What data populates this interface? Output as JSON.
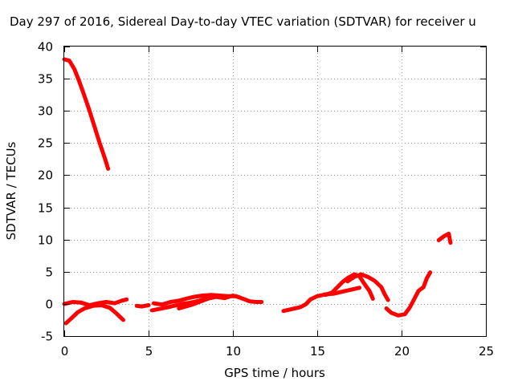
{
  "chart_data": {
    "type": "scatter",
    "title": "Day 297 of 2016, Sidereal Day-to-day VTEC variation (SDTVAR) for receiver u",
    "xlabel": "GPS time / hours",
    "ylabel": "SDTVAR / TECUs",
    "xlim": [
      0,
      25
    ],
    "ylim": [
      -5,
      40
    ],
    "xticks": [
      0,
      5,
      10,
      15,
      20,
      25
    ],
    "yticks": [
      -5,
      0,
      5,
      10,
      15,
      20,
      25,
      30,
      35,
      40
    ],
    "grid": true,
    "color": "#ff0000",
    "marker": "plus",
    "series": [
      {
        "points": [
          [
            0.0,
            38.0
          ],
          [
            0.3,
            37.8
          ],
          [
            0.6,
            36.5
          ],
          [
            0.9,
            34.5
          ],
          [
            1.2,
            32.3
          ],
          [
            1.5,
            30.0
          ],
          [
            1.8,
            27.5
          ],
          [
            2.1,
            25.0
          ],
          [
            2.4,
            22.7
          ],
          [
            2.6,
            21.0
          ]
        ]
      },
      {
        "points": [
          [
            0.1,
            -3.0
          ],
          [
            0.4,
            -2.3
          ],
          [
            0.8,
            -1.3
          ],
          [
            1.2,
            -0.7
          ],
          [
            1.7,
            -0.3
          ],
          [
            2.2,
            -0.2
          ],
          [
            2.7,
            -0.6
          ],
          [
            3.1,
            -1.5
          ],
          [
            3.5,
            -2.5
          ]
        ]
      },
      {
        "points": [
          [
            0.0,
            0.0
          ],
          [
            0.5,
            0.3
          ],
          [
            1.0,
            0.2
          ],
          [
            1.5,
            -0.2
          ],
          [
            2.0,
            0.1
          ],
          [
            2.5,
            0.3
          ],
          [
            3.0,
            0.1
          ],
          [
            3.4,
            0.5
          ],
          [
            3.7,
            0.7
          ]
        ]
      },
      {
        "points": [
          [
            4.3,
            -0.3
          ],
          [
            4.6,
            -0.4
          ],
          [
            5.0,
            -0.2
          ]
        ]
      },
      {
        "points": [
          [
            5.2,
            -1.0
          ],
          [
            5.6,
            -0.8
          ],
          [
            6.0,
            -0.6
          ],
          [
            6.5,
            -0.3
          ],
          [
            7.0,
            0.0
          ],
          [
            7.5,
            0.2
          ],
          [
            8.0,
            0.5
          ],
          [
            8.5,
            0.9
          ]
        ]
      },
      {
        "points": [
          [
            5.3,
            0.1
          ],
          [
            5.8,
            -0.1
          ],
          [
            6.3,
            0.3
          ],
          [
            6.8,
            0.5
          ],
          [
            7.2,
            0.8
          ],
          [
            7.7,
            1.1
          ],
          [
            8.2,
            1.3
          ],
          [
            8.7,
            1.4
          ],
          [
            9.2,
            1.3
          ],
          [
            9.7,
            1.2
          ],
          [
            10.2,
            1.2
          ],
          [
            10.6,
            0.8
          ],
          [
            11.0,
            0.4
          ],
          [
            11.4,
            0.3
          ],
          [
            11.7,
            0.3
          ]
        ]
      },
      {
        "points": [
          [
            6.8,
            -0.7
          ],
          [
            7.2,
            -0.4
          ],
          [
            7.6,
            -0.1
          ],
          [
            8.0,
            0.3
          ],
          [
            8.5,
            0.8
          ],
          [
            9.0,
            1.1
          ],
          [
            9.5,
            0.9
          ],
          [
            10.0,
            1.3
          ],
          [
            10.4,
            1.0
          ]
        ]
      },
      {
        "points": [
          [
            13.0,
            -1.1
          ],
          [
            13.5,
            -0.8
          ],
          [
            14.0,
            -0.5
          ],
          [
            14.3,
            -0.1
          ],
          [
            14.6,
            0.7
          ],
          [
            15.0,
            1.2
          ],
          [
            15.5,
            1.5
          ],
          [
            16.0,
            1.6
          ],
          [
            16.5,
            1.9
          ],
          [
            17.0,
            2.2
          ],
          [
            17.5,
            2.5
          ]
        ]
      },
      {
        "points": [
          [
            15.5,
            1.4
          ],
          [
            15.9,
            1.8
          ],
          [
            16.2,
            2.6
          ],
          [
            16.5,
            3.4
          ],
          [
            16.8,
            4.0
          ],
          [
            17.2,
            4.6
          ],
          [
            17.5,
            4.3
          ],
          [
            17.8,
            3.1
          ],
          [
            18.1,
            2.0
          ],
          [
            18.3,
            0.8
          ]
        ]
      },
      {
        "points": [
          [
            16.8,
            3.5
          ],
          [
            17.2,
            4.2
          ],
          [
            17.6,
            4.6
          ],
          [
            18.0,
            4.2
          ],
          [
            18.4,
            3.6
          ],
          [
            18.8,
            2.6
          ],
          [
            19.0,
            1.5
          ],
          [
            19.2,
            0.6
          ]
        ]
      },
      {
        "points": [
          [
            19.1,
            -0.7
          ],
          [
            19.4,
            -1.4
          ],
          [
            19.8,
            -1.8
          ],
          [
            20.2,
            -1.6
          ],
          [
            20.5,
            -0.5
          ],
          [
            20.8,
            1.0
          ],
          [
            21.0,
            2.0
          ],
          [
            21.3,
            2.6
          ],
          [
            21.5,
            4.0
          ],
          [
            21.7,
            4.9
          ]
        ]
      },
      {
        "points": [
          [
            22.2,
            9.9
          ],
          [
            22.5,
            10.5
          ],
          [
            22.8,
            10.9
          ],
          [
            22.9,
            9.5
          ]
        ]
      }
    ]
  }
}
